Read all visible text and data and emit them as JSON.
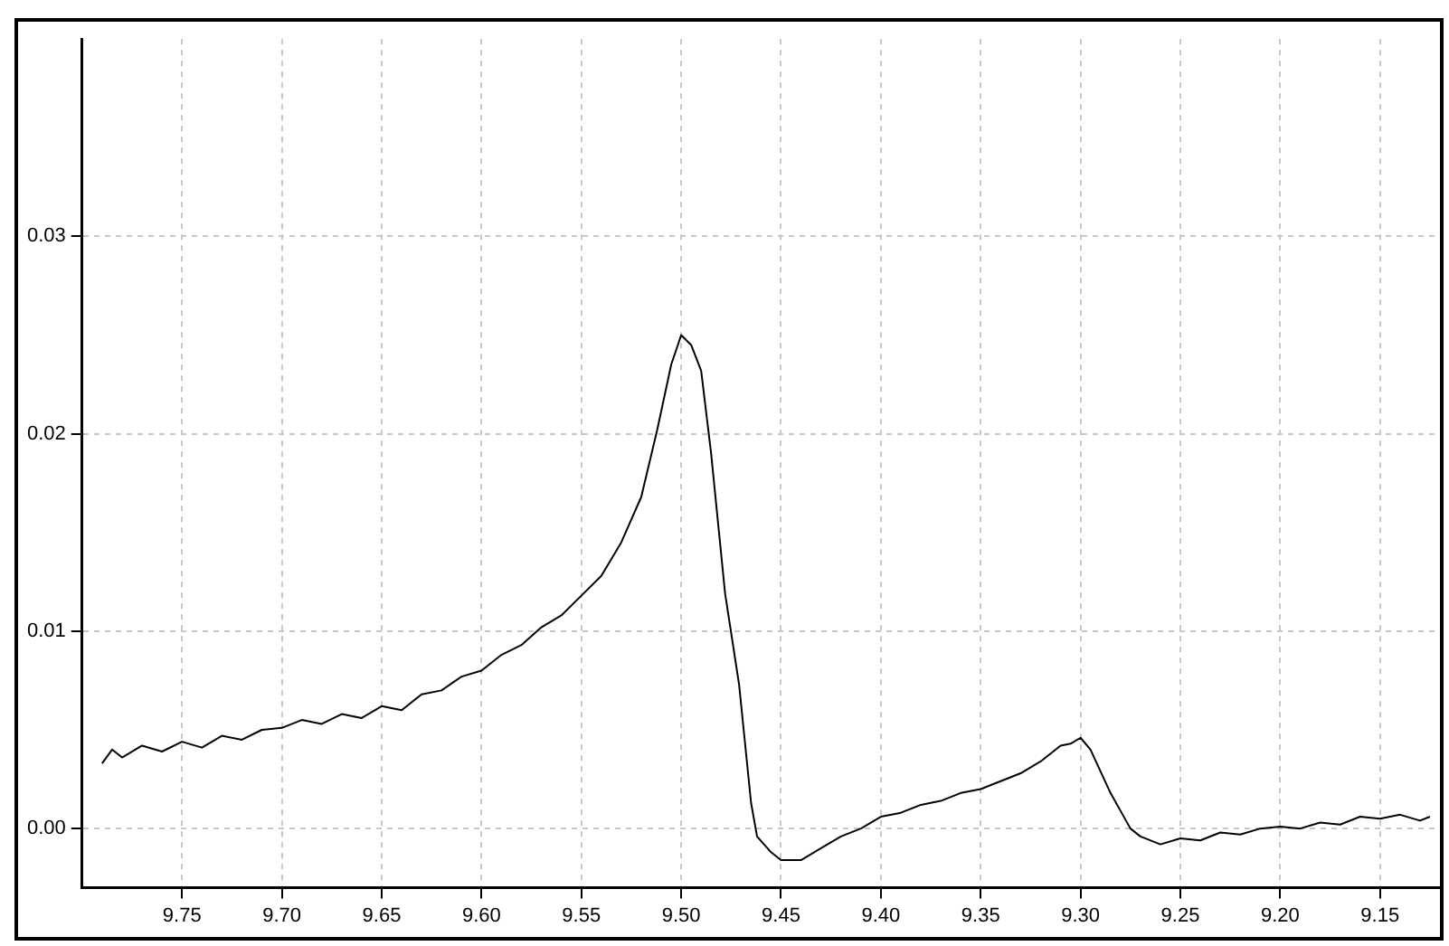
{
  "chart_data": {
    "type": "line",
    "xlim": [
      9.8,
      9.12
    ],
    "ylim": [
      -0.003,
      0.04
    ],
    "xticks": [
      9.75,
      {
        "value": 9.7,
        "label": "9.70"
      },
      9.65,
      {
        "value": 9.6,
        "label": "9.60"
      },
      9.55,
      {
        "value": 9.5,
        "label": "9.50"
      },
      9.45,
      {
        "value": 9.4,
        "label": "9.40"
      },
      9.35,
      {
        "value": 9.3,
        "label": "9.30"
      },
      9.25,
      {
        "value": 9.2,
        "label": "9.20"
      },
      9.15
    ],
    "yticks": [
      {
        "value": 0,
        "label": "0.00"
      },
      0.01,
      0.02,
      0.03
    ],
    "grid": true,
    "legend": false,
    "marker": "none",
    "line_style": "solid",
    "x": [
      9.79,
      9.785,
      9.78,
      9.77,
      9.76,
      9.75,
      9.74,
      9.73,
      9.72,
      9.71,
      9.7,
      9.69,
      9.68,
      9.67,
      9.66,
      9.65,
      9.64,
      9.63,
      9.62,
      9.61,
      9.6,
      9.59,
      9.58,
      9.57,
      9.56,
      9.55,
      9.54,
      9.53,
      9.52,
      9.512,
      9.505,
      9.5,
      9.495,
      9.49,
      9.485,
      9.478,
      9.471,
      9.465,
      9.462,
      9.455,
      9.45,
      9.44,
      9.43,
      9.42,
      9.41,
      9.4,
      9.39,
      9.38,
      9.37,
      9.36,
      9.35,
      9.34,
      9.33,
      9.32,
      9.31,
      9.305,
      9.3,
      9.295,
      9.285,
      9.275,
      9.27,
      9.26,
      9.25,
      9.24,
      9.23,
      9.22,
      9.21,
      9.2,
      9.19,
      9.18,
      9.17,
      9.16,
      9.15,
      9.14,
      9.13,
      9.125
    ],
    "series": [
      {
        "color": "#000000",
        "values": [
          0.0033,
          0.004,
          0.0036,
          0.0042,
          0.0039,
          0.0044,
          0.0041,
          0.0047,
          0.0045,
          0.005,
          0.0051,
          0.0055,
          0.0053,
          0.0058,
          0.0056,
          0.0062,
          0.006,
          0.0068,
          0.007,
          0.0077,
          0.008,
          0.0088,
          0.0093,
          0.0102,
          0.0108,
          0.0118,
          0.0128,
          0.0145,
          0.0168,
          0.0202,
          0.0235,
          0.025,
          0.0245,
          0.0232,
          0.019,
          0.0119,
          0.0073,
          0.0013,
          -0.0004,
          -0.0012,
          -0.0016,
          -0.0016,
          -0.001,
          -0.0004,
          0.0,
          0.0006,
          0.0008,
          0.0012,
          0.0014,
          0.0018,
          0.002,
          0.0024,
          0.0028,
          0.0034,
          0.0042,
          0.0043,
          0.0046,
          0.004,
          0.0018,
          0.0,
          -0.0004,
          -0.0008,
          -0.0005,
          -0.0006,
          -0.0002,
          -0.0003,
          0.0,
          0.0001,
          0.0,
          0.0003,
          0.0002,
          0.0006,
          0.0005,
          0.0007,
          0.0004,
          0.0006
        ]
      }
    ]
  }
}
